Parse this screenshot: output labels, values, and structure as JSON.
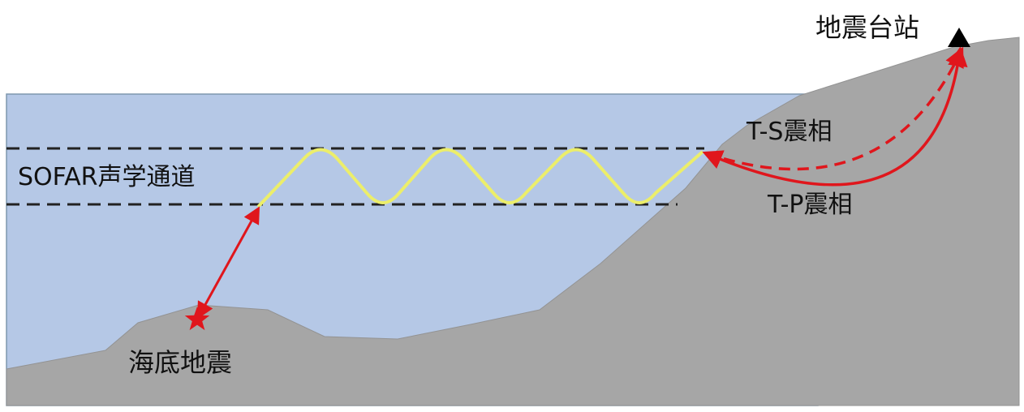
{
  "labels": {
    "station": "地震台站",
    "sofar_channel": "SOFAR声学通道",
    "ts_phase": "T-S震相",
    "tp_phase": "T-P震相",
    "earthquake": "海底地震"
  },
  "colors": {
    "water": "#b5c8e6",
    "rock": "#a6a6a6",
    "sofar_wave": "#ecee6a",
    "ray": "#e0161c",
    "channel_line": "#222222",
    "text": "#111111"
  },
  "icons": {
    "epicenter": "red-star-icon",
    "station": "black-triangle-icon"
  }
}
